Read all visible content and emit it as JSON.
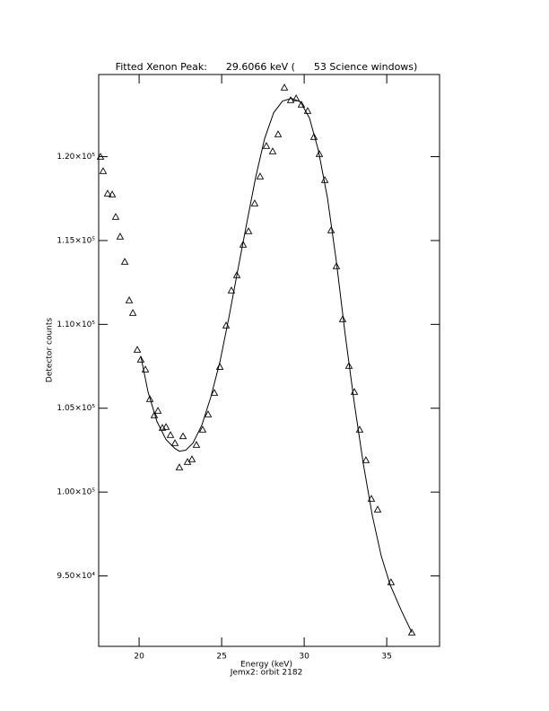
{
  "chart_data": {
    "type": "scatter",
    "title": "Fitted Xenon Peak:      29.6066 keV (      53 Science windows)",
    "x_label": "Energy (keV)",
    "subtitle": "Jemx2: orbit 2182",
    "y_label": "Detector counts",
    "xlim": [
      17.55,
      38.2
    ],
    "ylim": [
      90800,
      124900
    ],
    "xticks": [
      20,
      25,
      30,
      35
    ],
    "yticks": [
      {
        "value": 95000,
        "label": "9.50×10⁴"
      },
      {
        "value": 100000,
        "label": "1.00×10⁵"
      },
      {
        "value": 105000,
        "label": "1.05×10⁵"
      },
      {
        "value": 110000,
        "label": "1.10×10⁵"
      },
      {
        "value": 115000,
        "label": "1.15×10⁵"
      },
      {
        "value": 120000,
        "label": "1.20×10⁵"
      }
    ],
    "series": [
      {
        "style": "markers",
        "color": "#000000",
        "x": [
          17.66,
          17.82,
          18.09,
          18.37,
          18.58,
          18.85,
          19.13,
          19.4,
          19.62,
          19.89,
          20.1,
          20.38,
          20.65,
          20.92,
          21.14,
          21.41,
          21.63,
          21.9,
          22.17,
          22.44,
          22.66,
          22.93,
          23.2,
          23.47,
          23.85,
          24.18,
          24.56,
          24.89,
          25.27,
          25.59,
          25.92,
          26.3,
          26.63,
          27.0,
          27.33,
          27.71,
          28.09,
          28.42,
          28.8,
          29.18,
          29.51,
          29.83,
          30.21,
          30.59,
          30.92,
          31.25,
          31.63,
          31.95,
          32.33,
          32.71,
          33.04,
          33.36,
          33.74,
          34.07,
          34.45,
          35.26,
          36.52
        ],
        "values": [
          120000,
          119143,
          117805,
          117751,
          116413,
          115235,
          113736,
          111435,
          110685,
          108490,
          107901,
          107313,
          105546,
          104582,
          104850,
          103833,
          103886,
          103405,
          102922,
          101477,
          103330,
          101800,
          101959,
          102818,
          103725,
          104636,
          105920,
          107470,
          109935,
          112024,
          112933,
          114754,
          115556,
          117216,
          118822,
          120642,
          120321,
          121338,
          124122,
          123373,
          123480,
          123105,
          122730,
          121178,
          120160,
          118608,
          115610,
          113469,
          110310,
          107526,
          105974,
          103725,
          101905,
          99603,
          98961,
          94625,
          91627
        ]
      },
      {
        "style": "line",
        "color": "#000000",
        "x": [
          20.1,
          20.54,
          21.08,
          21.63,
          22.17,
          22.44,
          22.82,
          23.26,
          23.8,
          24.34,
          24.89,
          25.43,
          25.97,
          26.52,
          27.06,
          27.6,
          28.15,
          28.69,
          29.23,
          29.78,
          30.32,
          30.86,
          31.41,
          31.95,
          32.49,
          33.04,
          33.58,
          34.13,
          34.67,
          35.21,
          35.87,
          36.52
        ],
        "values": [
          108115,
          105974,
          104208,
          103137,
          102600,
          102440,
          102494,
          102922,
          103993,
          105653,
          107740,
          110364,
          113200,
          116038,
          118769,
          121070,
          122623,
          123320,
          123480,
          123266,
          122302,
          120375,
          117537,
          113736,
          109346,
          105278,
          101691,
          98586,
          96177,
          94465,
          92966,
          91627
        ]
      }
    ]
  }
}
